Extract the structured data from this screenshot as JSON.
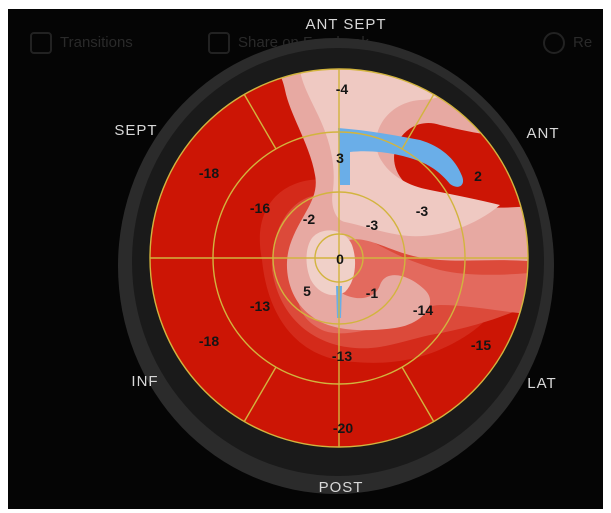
{
  "background_toolbar": {
    "item1_label": "Transitions",
    "item2_label": "Share on Facebook",
    "item3_label": "Re"
  },
  "bullseye": {
    "wall_labels": {
      "ant_sept": "ANT SEPT",
      "ant": "ANT",
      "sept": "SEPT",
      "inf": "INF",
      "lat": "LAT",
      "post": "POST"
    },
    "basal": {
      "anterior": "-4",
      "anterolateral": "2",
      "anteroseptal": "-18",
      "inferoseptal": "-18",
      "inferolateral": "-15",
      "inferior": "-20"
    },
    "mid": {
      "anterior": "3",
      "anterolateral": "-3",
      "anteroseptal": "-16",
      "inferoseptal": "-13",
      "inferolateral": "-14",
      "inferior": "-13"
    },
    "apical": {
      "anterior": "-3",
      "septal": "-2",
      "inferior": "5",
      "lateral": "-1"
    },
    "apex": "0"
  },
  "colors": {
    "frame_background": "#050505",
    "deep_red": "#cc1505",
    "red": "#d42a1a",
    "salmon": "#e36a5e",
    "pink": "#e7a9a2",
    "light_pink": "#efc9c2",
    "blue": "#6aaee8",
    "grid_line": "#d2b43e"
  }
}
